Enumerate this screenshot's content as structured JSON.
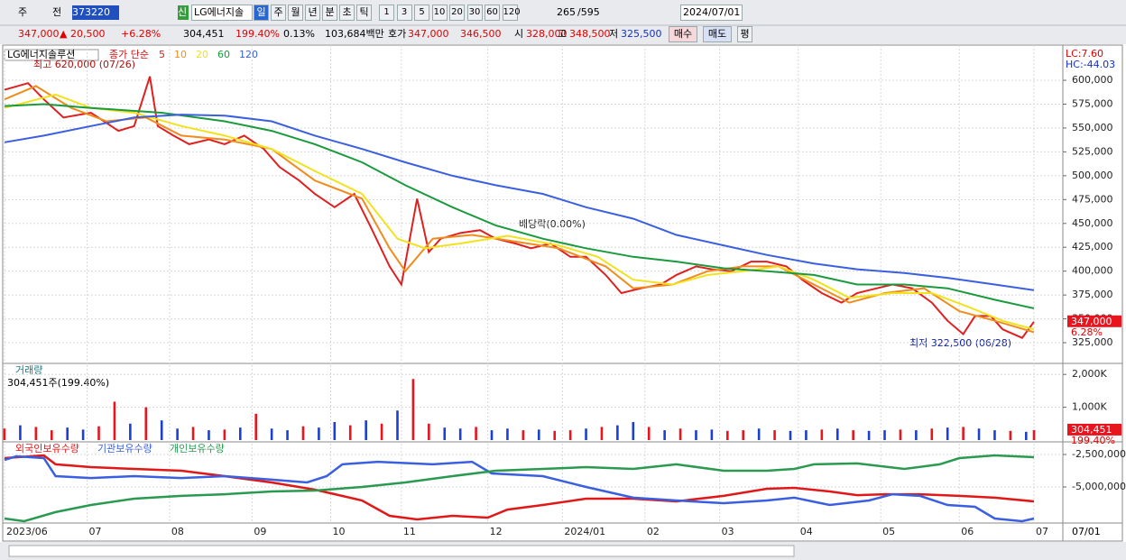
{
  "toolbar": {
    "period": "주",
    "prev": "전",
    "code": "373220",
    "new": "신",
    "name": "LG에너지솔",
    "units": [
      "일",
      "주",
      "월",
      "년",
      "분",
      "초",
      "틱"
    ],
    "intervals": [
      "1",
      "3",
      "5",
      "10",
      "20",
      "30",
      "60",
      "120"
    ],
    "count": "265",
    "total": "/595",
    "date": "2024/07/01"
  },
  "quote": {
    "price": "347,000",
    "arrow": "▲",
    "change": "20,500",
    "rate": "+6.28%",
    "volume": "304,451",
    "volume_rate": "199.40%",
    "turnover": "0.13%",
    "amount": "103,684백만",
    "ask_label": "호가",
    "ask": "347,000",
    "bid": "346,500",
    "open_label": "시",
    "open": "328,000",
    "high_label": "고",
    "high": "348,500",
    "low_label": "저",
    "low": "325,500",
    "buy": "매수",
    "sell": "매도",
    "avg": "평"
  },
  "chart_data": [
    {
      "type": "line",
      "title": "LG에너지솔루션",
      "legend_prefix": "종가 단순",
      "grid": true,
      "xlim": [
        0,
        269
      ],
      "xticks": [
        {
          "value": 0,
          "label": "2023/06"
        },
        {
          "value": 21,
          "label": "07"
        },
        {
          "value": 42,
          "label": "08"
        },
        {
          "value": 63,
          "label": "09"
        },
        {
          "value": 83,
          "label": "10"
        },
        {
          "value": 101,
          "label": "11"
        },
        {
          "value": 123,
          "label": "12"
        },
        {
          "value": 142,
          "label": "2024/01"
        },
        {
          "value": 163,
          "label": "02"
        },
        {
          "value": 182,
          "label": "03"
        },
        {
          "value": 202,
          "label": "04"
        },
        {
          "value": 223,
          "label": "05"
        },
        {
          "value": 243,
          "label": "06"
        },
        {
          "value": 262,
          "label": "07"
        }
      ],
      "x_end_label": "07/01",
      "ylim": [
        303300,
        636900
      ],
      "yticks": [
        {
          "value": 325000,
          "label": "325,000"
        },
        {
          "value": 350000,
          "label": "350,000"
        },
        {
          "value": 375000,
          "label": "375,000"
        },
        {
          "value": 400000,
          "label": "400,000"
        },
        {
          "value": 425000,
          "label": "425,000"
        },
        {
          "value": 450000,
          "label": "450,000"
        },
        {
          "value": 475000,
          "label": "475,000"
        },
        {
          "value": 500000,
          "label": "500,000"
        },
        {
          "value": 525000,
          "label": "525,000"
        },
        {
          "value": 550000,
          "label": "550,000"
        },
        {
          "value": 575000,
          "label": "575,000"
        },
        {
          "value": 600000,
          "label": "600,000"
        }
      ],
      "lc": "LC:7.60",
      "hc": "HC:-44.03",
      "high_note": "최고 620,000 (07/26)",
      "event_note": "배당락(0.00%)",
      "low_note": "최저 322,500 (06/28)",
      "last": {
        "value": 347000,
        "label": "347,000"
      },
      "last_rate": "6.28%",
      "last_color": "#e8141e",
      "series": [
        {
          "name": "5",
          "color": "#e02020",
          "x": [
            0,
            6,
            10,
            15,
            22,
            29,
            33,
            37,
            39,
            43,
            47,
            52,
            56,
            61,
            66,
            70,
            75,
            79,
            84,
            89,
            93,
            98,
            101,
            105,
            108,
            111,
            116,
            121,
            125,
            130,
            134,
            139,
            144,
            148,
            153,
            157,
            162,
            167,
            171,
            176,
            180,
            185,
            190,
            194,
            199,
            203,
            208,
            213,
            217,
            222,
            226,
            231,
            236,
            240,
            244,
            247,
            251,
            254,
            259,
            262
          ],
          "values": [
            590000,
            597000,
            580000,
            561000,
            566000,
            547000,
            552000,
            604000,
            552000,
            542000,
            533000,
            538000,
            533000,
            542000,
            528000,
            509000,
            495000,
            481000,
            467000,
            481000,
            448000,
            405000,
            386000,
            476000,
            420000,
            434000,
            440000,
            443000,
            434000,
            429000,
            424000,
            429000,
            415000,
            415000,
            396000,
            377000,
            382000,
            386000,
            396000,
            405000,
            402000,
            400000,
            410000,
            410000,
            405000,
            391000,
            377000,
            367000,
            377000,
            382000,
            386000,
            382000,
            367000,
            348000,
            334000,
            353000,
            353000,
            339000,
            330000,
            347000
          ]
        },
        {
          "name": "10",
          "color": "#f08c1c",
          "x": [
            0,
            8,
            17,
            26,
            36,
            45,
            56,
            68,
            79,
            91,
            98,
            102,
            109,
            119,
            130,
            141,
            153,
            160,
            170,
            179,
            188,
            197,
            206,
            215,
            224,
            234,
            243,
            252,
            262
          ],
          "values": [
            580000,
            594000,
            571000,
            557000,
            561000,
            542000,
            538000,
            528000,
            495000,
            476000,
            424000,
            400000,
            434000,
            438000,
            431000,
            424000,
            405000,
            382000,
            386000,
            400000,
            405000,
            405000,
            386000,
            367000,
            377000,
            382000,
            358000,
            348000,
            336000
          ]
        },
        {
          "name": "20",
          "color": "#f2e21e",
          "x": [
            0,
            13,
            22,
            33,
            45,
            56,
            68,
            79,
            91,
            100,
            107,
            116,
            128,
            141,
            151,
            160,
            170,
            179,
            188,
            197,
            206,
            215,
            226,
            236,
            245,
            254,
            262
          ],
          "values": [
            571000,
            585000,
            571000,
            566000,
            552000,
            542000,
            528000,
            505000,
            481000,
            434000,
            424000,
            429000,
            437000,
            427000,
            415000,
            391000,
            386000,
            396000,
            400000,
            405000,
            391000,
            372000,
            377000,
            377000,
            363000,
            348000,
            339000
          ]
        },
        {
          "name": "60",
          "color": "#1a9a3c",
          "x": [
            0,
            10,
            22,
            40,
            56,
            68,
            79,
            91,
            102,
            114,
            125,
            137,
            148,
            160,
            171,
            183,
            194,
            206,
            217,
            229,
            240,
            252,
            262
          ],
          "values": [
            573000,
            575000,
            571000,
            566000,
            557000,
            547000,
            533000,
            514000,
            490000,
            467000,
            448000,
            434000,
            424000,
            415000,
            410000,
            403000,
            400000,
            396000,
            386000,
            386000,
            382000,
            370000,
            361000
          ]
        },
        {
          "name": "120",
          "color": "#3a5fe0",
          "x": [
            0,
            10,
            22,
            33,
            45,
            56,
            68,
            79,
            91,
            102,
            114,
            125,
            137,
            148,
            160,
            171,
            183,
            194,
            206,
            217,
            229,
            240,
            252,
            262
          ],
          "values": [
            535000,
            542000,
            552000,
            561000,
            564000,
            563000,
            557000,
            542000,
            528000,
            514000,
            500000,
            490000,
            481000,
            467000,
            455000,
            438000,
            427000,
            417000,
            408000,
            402000,
            398000,
            393000,
            386000,
            380000
          ]
        }
      ]
    },
    {
      "type": "bar",
      "title": "거래량",
      "info": "304,451주(199.40%)",
      "up_color": "#e8141e",
      "down_color": "#1d3fd0",
      "ylim": [
        0,
        2280000
      ],
      "yticks": [
        {
          "value": 1000000,
          "label": "1,000K"
        },
        {
          "value": 2000000,
          "label": "2,000K"
        }
      ],
      "last": {
        "value": 304451,
        "label": "304,451"
      },
      "last_rate": "199.40%",
      "x": [
        0,
        4,
        8,
        12,
        16,
        20,
        24,
        28,
        32,
        36,
        40,
        44,
        48,
        52,
        56,
        60,
        64,
        68,
        72,
        76,
        80,
        84,
        88,
        92,
        96,
        100,
        104,
        108,
        112,
        116,
        120,
        124,
        128,
        132,
        136,
        140,
        144,
        148,
        152,
        156,
        160,
        164,
        168,
        172,
        176,
        180,
        184,
        188,
        192,
        196,
        200,
        204,
        208,
        212,
        216,
        220,
        224,
        228,
        232,
        236,
        240,
        244,
        248,
        252,
        256,
        260,
        262
      ],
      "values": [
        350000,
        450000,
        400000,
        300000,
        380000,
        320000,
        420000,
        1170000,
        500000,
        1000000,
        600000,
        350000,
        400000,
        300000,
        320000,
        380000,
        800000,
        350000,
        300000,
        420000,
        380000,
        550000,
        450000,
        600000,
        500000,
        900000,
        1860000,
        500000,
        380000,
        350000,
        400000,
        300000,
        350000,
        300000,
        320000,
        280000,
        300000,
        350000,
        400000,
        450000,
        550000,
        400000,
        300000,
        350000,
        300000,
        320000,
        280000,
        300000,
        350000,
        300000,
        280000,
        300000,
        320000,
        350000,
        300000,
        280000,
        300000,
        320000,
        300000,
        350000,
        380000,
        400000,
        350000,
        300000,
        280000,
        250000,
        304451
      ],
      "rising": [
        true,
        false,
        true,
        true,
        false,
        false,
        true,
        true,
        false,
        true,
        false,
        false,
        true,
        false,
        true,
        false,
        true,
        false,
        false,
        true,
        false,
        false,
        true,
        false,
        true,
        false,
        true,
        true,
        false,
        false,
        true,
        false,
        false,
        true,
        false,
        true,
        true,
        false,
        true,
        false,
        false,
        true,
        false,
        true,
        false,
        false,
        true,
        true,
        false,
        true,
        false,
        false,
        true,
        false,
        true,
        false,
        false,
        true,
        false,
        true,
        false,
        true,
        false,
        false,
        true,
        false,
        true
      ]
    },
    {
      "type": "line",
      "ylim": [
        -7778000,
        -1667000
      ],
      "yticks": [
        {
          "value": -5000000,
          "label": "-5,000,000"
        },
        {
          "value": -2500000,
          "label": "-2,500,000"
        }
      ],
      "series": [
        {
          "name": "외국인보유수량",
          "color": "#e01818",
          "x": [
            0,
            10,
            13,
            22,
            33,
            45,
            56,
            68,
            79,
            91,
            98,
            105,
            114,
            123,
            128,
            137,
            148,
            160,
            171,
            183,
            194,
            201,
            210,
            217,
            224,
            233,
            243,
            252,
            262
          ],
          "values": [
            -2780000,
            -2570000,
            -3260000,
            -3470000,
            -3610000,
            -3750000,
            -4170000,
            -4650000,
            -5210000,
            -6040000,
            -7220000,
            -7500000,
            -7220000,
            -7360000,
            -6740000,
            -6390000,
            -5900000,
            -5900000,
            -6110000,
            -5690000,
            -5140000,
            -5070000,
            -5350000,
            -5630000,
            -5560000,
            -5560000,
            -5690000,
            -5830000,
            -6110000
          ]
        },
        {
          "name": "기관보유수량",
          "color": "#3a5fe0",
          "x": [
            0,
            3,
            10,
            13,
            22,
            33,
            45,
            56,
            68,
            77,
            82,
            86,
            95,
            109,
            119,
            124,
            137,
            148,
            160,
            171,
            183,
            194,
            201,
            210,
            220,
            226,
            233,
            240,
            247,
            252,
            259,
            262
          ],
          "values": [
            -2920000,
            -2640000,
            -2780000,
            -4170000,
            -4310000,
            -4170000,
            -4310000,
            -4170000,
            -4440000,
            -4650000,
            -4170000,
            -3260000,
            -3060000,
            -3260000,
            -3060000,
            -3960000,
            -4170000,
            -5000000,
            -5830000,
            -6040000,
            -6250000,
            -6040000,
            -5830000,
            -6390000,
            -6040000,
            -5560000,
            -5690000,
            -6390000,
            -6530000,
            -7430000,
            -7640000,
            -7430000
          ]
        },
        {
          "name": "개인보유수량",
          "color": "#2a9a50",
          "x": [
            0,
            5,
            13,
            22,
            33,
            45,
            56,
            68,
            79,
            91,
            102,
            114,
            125,
            137,
            148,
            160,
            171,
            183,
            194,
            201,
            206,
            217,
            229,
            238,
            243,
            252,
            262
          ],
          "values": [
            -7430000,
            -7640000,
            -6940000,
            -6390000,
            -5900000,
            -5690000,
            -5560000,
            -5350000,
            -5280000,
            -5000000,
            -4650000,
            -4170000,
            -3750000,
            -3610000,
            -3470000,
            -3610000,
            -3260000,
            -3750000,
            -3750000,
            -3610000,
            -3260000,
            -3190000,
            -3610000,
            -3260000,
            -2780000,
            -2570000,
            -2710000
          ]
        }
      ]
    }
  ]
}
